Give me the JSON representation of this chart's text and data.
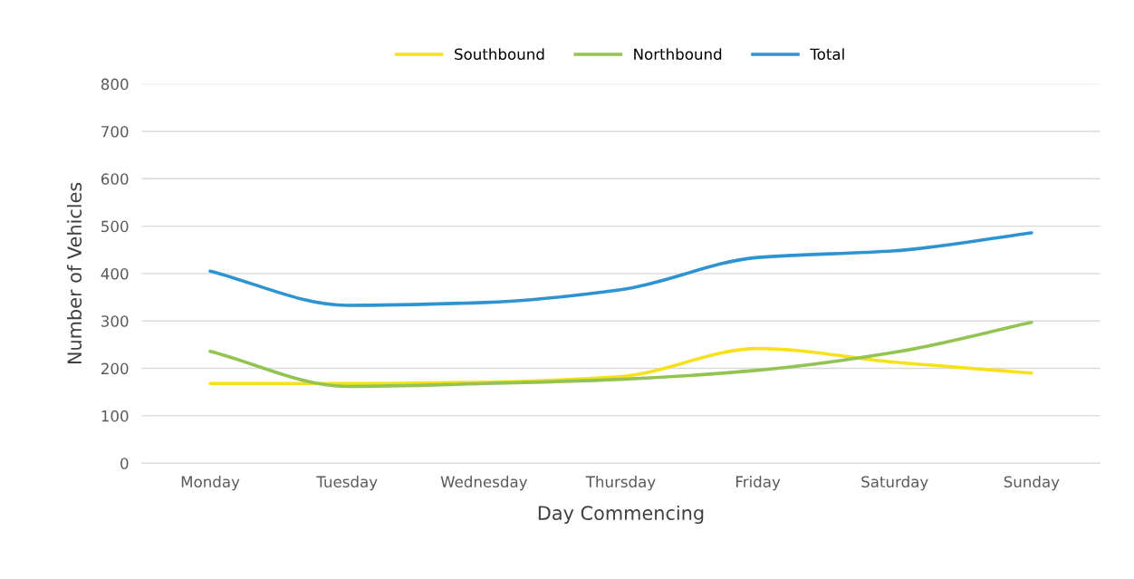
{
  "chart_data": {
    "type": "line",
    "xlabel": "Day Commencing",
    "ylabel": "Number of Vehicles",
    "categories": [
      "Monday",
      "Tuesday",
      "Wednesday",
      "Thursday",
      "Friday",
      "Saturday",
      "Sunday"
    ],
    "series": [
      {
        "name": "Southbound",
        "color": "#f7e11c",
        "values": [
          168,
          168,
          171,
          183,
          242,
          213,
          190
        ]
      },
      {
        "name": "Northbound",
        "color": "#92c353",
        "values": [
          236,
          162,
          168,
          177,
          196,
          234,
          297
        ]
      },
      {
        "name": "Total",
        "color": "#2e93d1",
        "values": [
          405,
          333,
          339,
          366,
          434,
          448,
          486
        ]
      }
    ],
    "ylim": [
      0,
      800
    ],
    "yticks": [
      0,
      100,
      200,
      300,
      400,
      500,
      600,
      700,
      800
    ],
    "grid": "y",
    "legend": "top",
    "marker": "none",
    "line_style": "solid"
  }
}
